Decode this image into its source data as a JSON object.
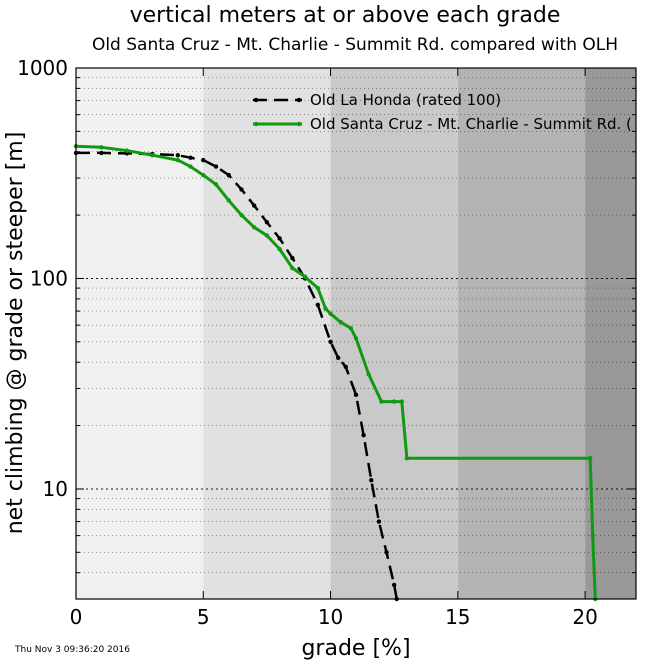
{
  "chart_data": {
    "type": "line",
    "title": "vertical meters at or above each grade",
    "subtitle": "Old Santa Cruz - Mt. Charlie - Summit Rd. compared with OLH",
    "xlabel": "grade [%]",
    "ylabel": "net climbing @ grade or steeper [m]",
    "xlim": [
      0,
      22
    ],
    "ylim": [
      3,
      1000
    ],
    "yscale": "log",
    "xticks": [
      0,
      5,
      10,
      15,
      20
    ],
    "yticks": [
      10,
      100,
      1000
    ],
    "grid": true,
    "legend_position": "top-center",
    "background_bands": [
      {
        "from": 0,
        "to": 5,
        "color": "#f0f0f0"
      },
      {
        "from": 5,
        "to": 10,
        "color": "#e1e1e1"
      },
      {
        "from": 10,
        "to": 15,
        "color": "#c9c9c9"
      },
      {
        "from": 15,
        "to": 20,
        "color": "#b4b4b4"
      },
      {
        "from": 20,
        "to": 22,
        "color": "#999999"
      }
    ],
    "series": [
      {
        "name": "Old La Honda (rated 100)",
        "color": "#000000",
        "style": "dashed",
        "x": [
          0,
          1,
          2,
          3,
          4,
          4.5,
          5,
          5.5,
          6,
          6.5,
          7,
          7.5,
          8,
          8.5,
          9,
          9.5,
          10,
          10.3,
          10.6,
          11,
          11.3,
          11.6,
          11.9,
          12.2,
          12.5,
          12.6
        ],
        "y": [
          395,
          395,
          393,
          390,
          385,
          375,
          365,
          340,
          310,
          265,
          222,
          185,
          155,
          125,
          100,
          75,
          50,
          42,
          38,
          28,
          18,
          11,
          7,
          5,
          3.5,
          3
        ]
      },
      {
        "name": "Old Santa Cruz - Mt. Charlie - Summit Rd. (",
        "color": "#119911",
        "style": "solid",
        "x": [
          0,
          1,
          2,
          3,
          4,
          4.5,
          5,
          5.5,
          6,
          6.5,
          7,
          7.5,
          8,
          8.5,
          9,
          9.5,
          9.8,
          10,
          10.4,
          10.8,
          11,
          11.5,
          12,
          12.5,
          12.8,
          13,
          20.2,
          20.3,
          20.4
        ],
        "y": [
          425,
          420,
          405,
          385,
          365,
          340,
          310,
          280,
          235,
          200,
          175,
          160,
          138,
          112,
          102,
          90,
          72,
          68,
          62,
          58,
          52,
          35,
          26,
          26,
          26,
          14,
          14,
          6,
          3
        ]
      }
    ]
  },
  "footer": {
    "timestamp": "Thu Nov  3 09:36:20 2016"
  }
}
